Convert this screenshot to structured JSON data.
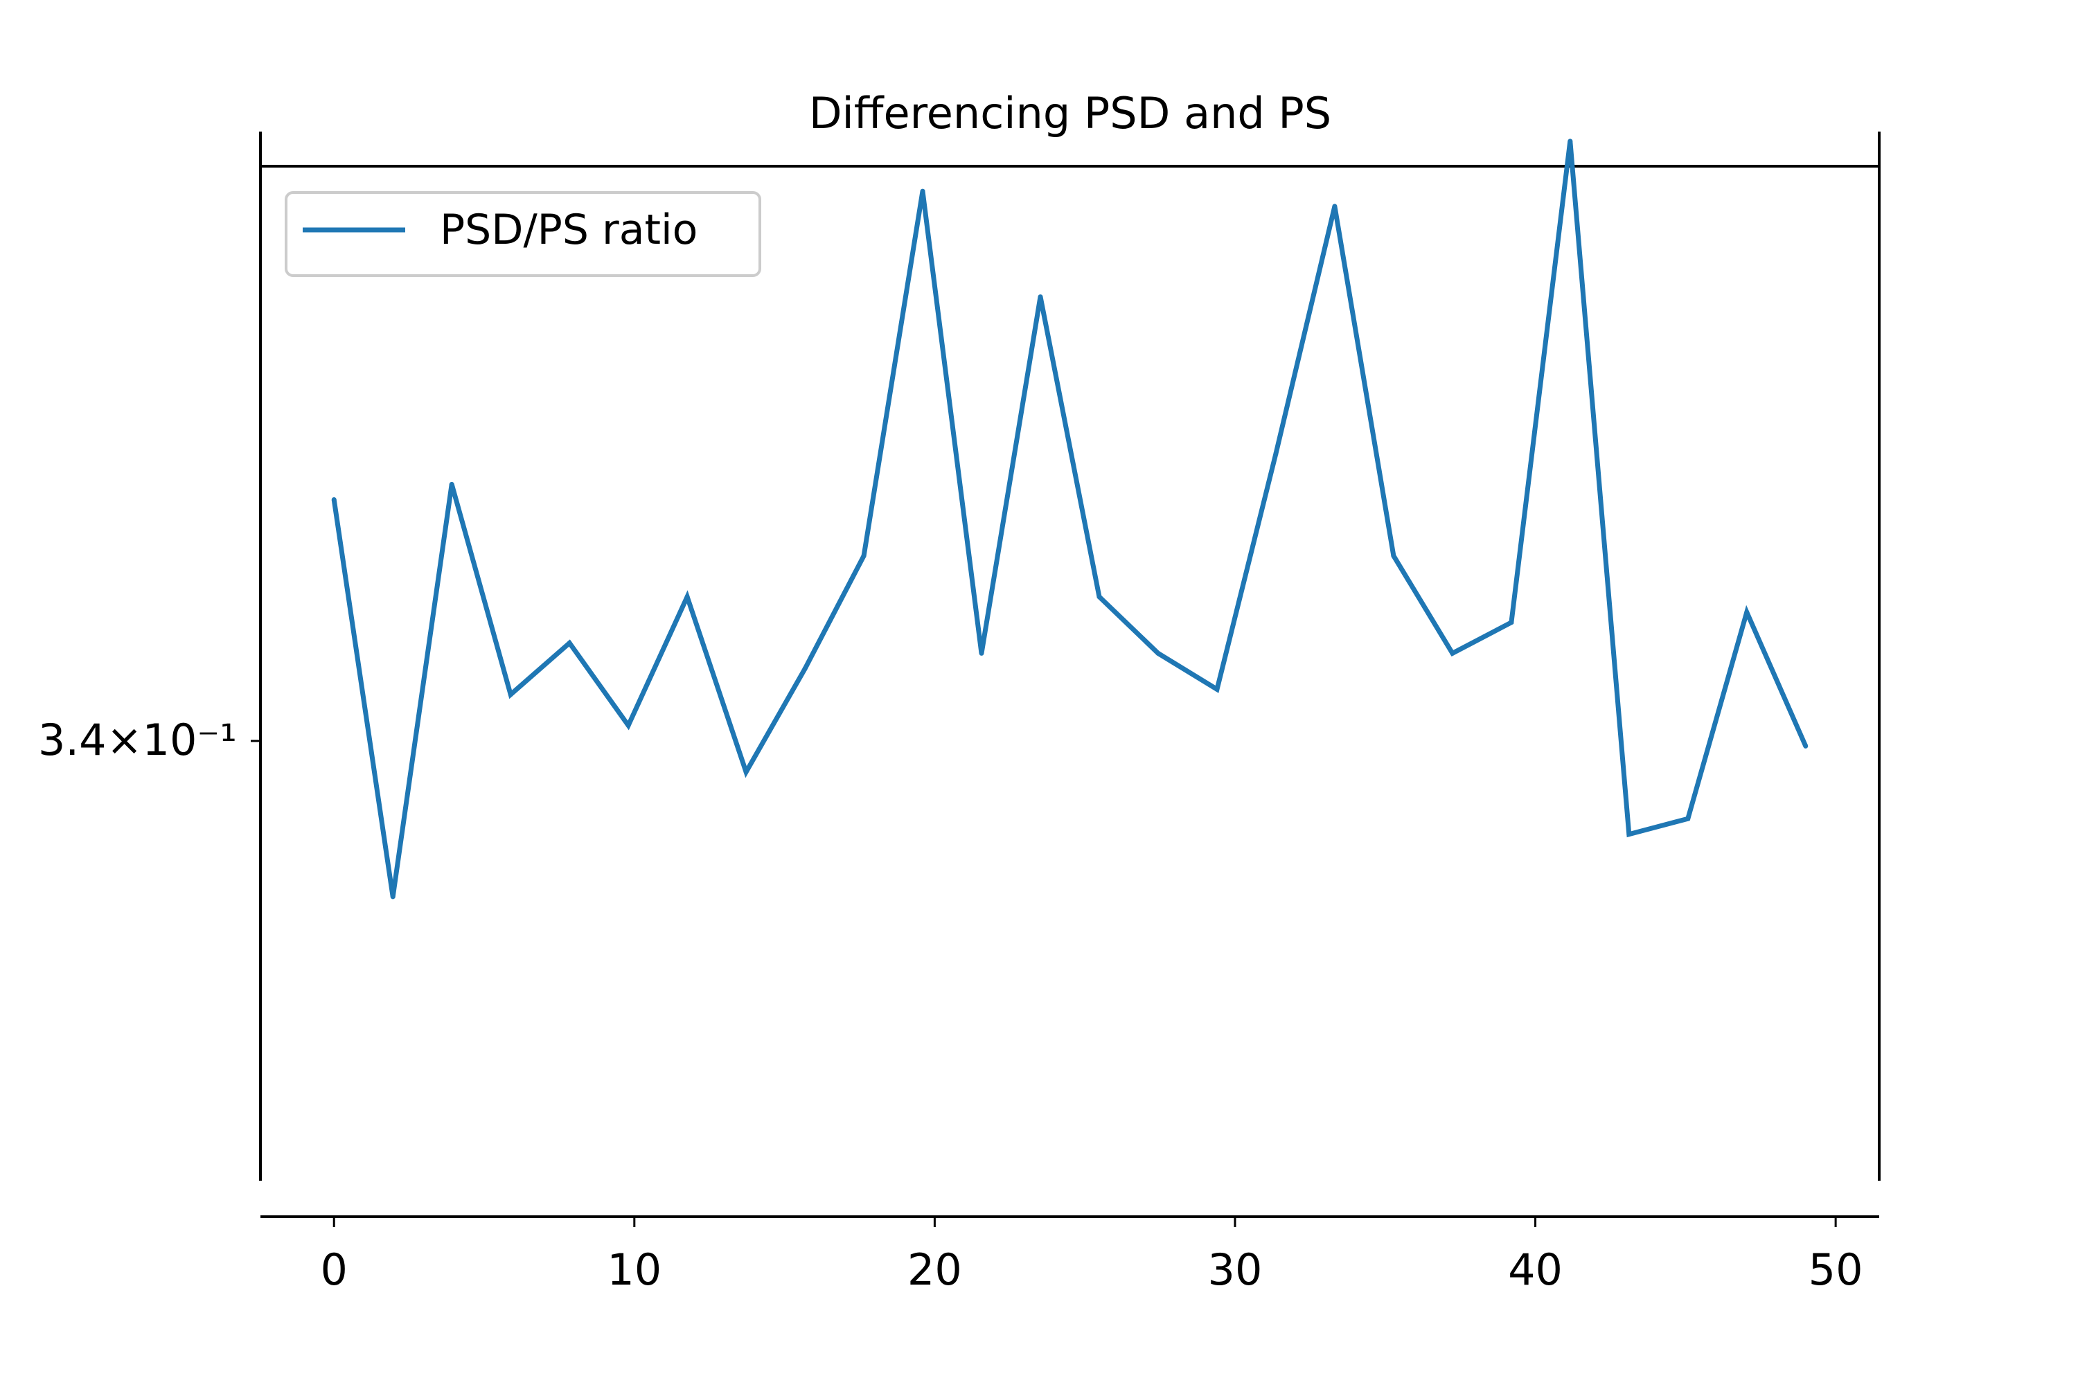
{
  "chart_data": {
    "type": "line",
    "title": "Differencing PSD and PS",
    "xlabel": "",
    "ylabel": "",
    "yscale": "log",
    "xlim": [
      -2.45,
      51.45
    ],
    "ylim": [
      0.3316,
      0.3513
    ],
    "x_ticks": [
      0,
      10,
      20,
      30,
      40,
      50
    ],
    "x_tick_labels": [
      "0",
      "10",
      "20",
      "30",
      "40",
      "50"
    ],
    "y_ticks": [
      0.34
    ],
    "y_tick_labels": [
      "3.4×10⁻¹"
    ],
    "legend": {
      "position": "upper-left"
    },
    "grid": false,
    "series": [
      {
        "name": "PSD/PS ratio",
        "color": "#1f77b4",
        "x": [
          0,
          1.96,
          3.92,
          5.88,
          7.84,
          9.8,
          11.76,
          13.72,
          15.68,
          17.64,
          19.6,
          21.56,
          23.52,
          25.48,
          27.44,
          29.4,
          31.36,
          33.32,
          35.28,
          37.24,
          39.2,
          41.16,
          43.12,
          45.08,
          47.04,
          49.0
        ],
        "y": [
          0.3447,
          0.337,
          0.345,
          0.3409,
          0.3419,
          0.3403,
          0.3428,
          0.3394,
          0.3414,
          0.3436,
          0.3508,
          0.3417,
          0.3487,
          0.3428,
          0.3417,
          0.341,
          0.3456,
          0.3505,
          0.3436,
          0.3417,
          0.3423,
          0.3518,
          0.3382,
          0.3385,
          0.3425,
          0.3399
        ]
      }
    ]
  }
}
